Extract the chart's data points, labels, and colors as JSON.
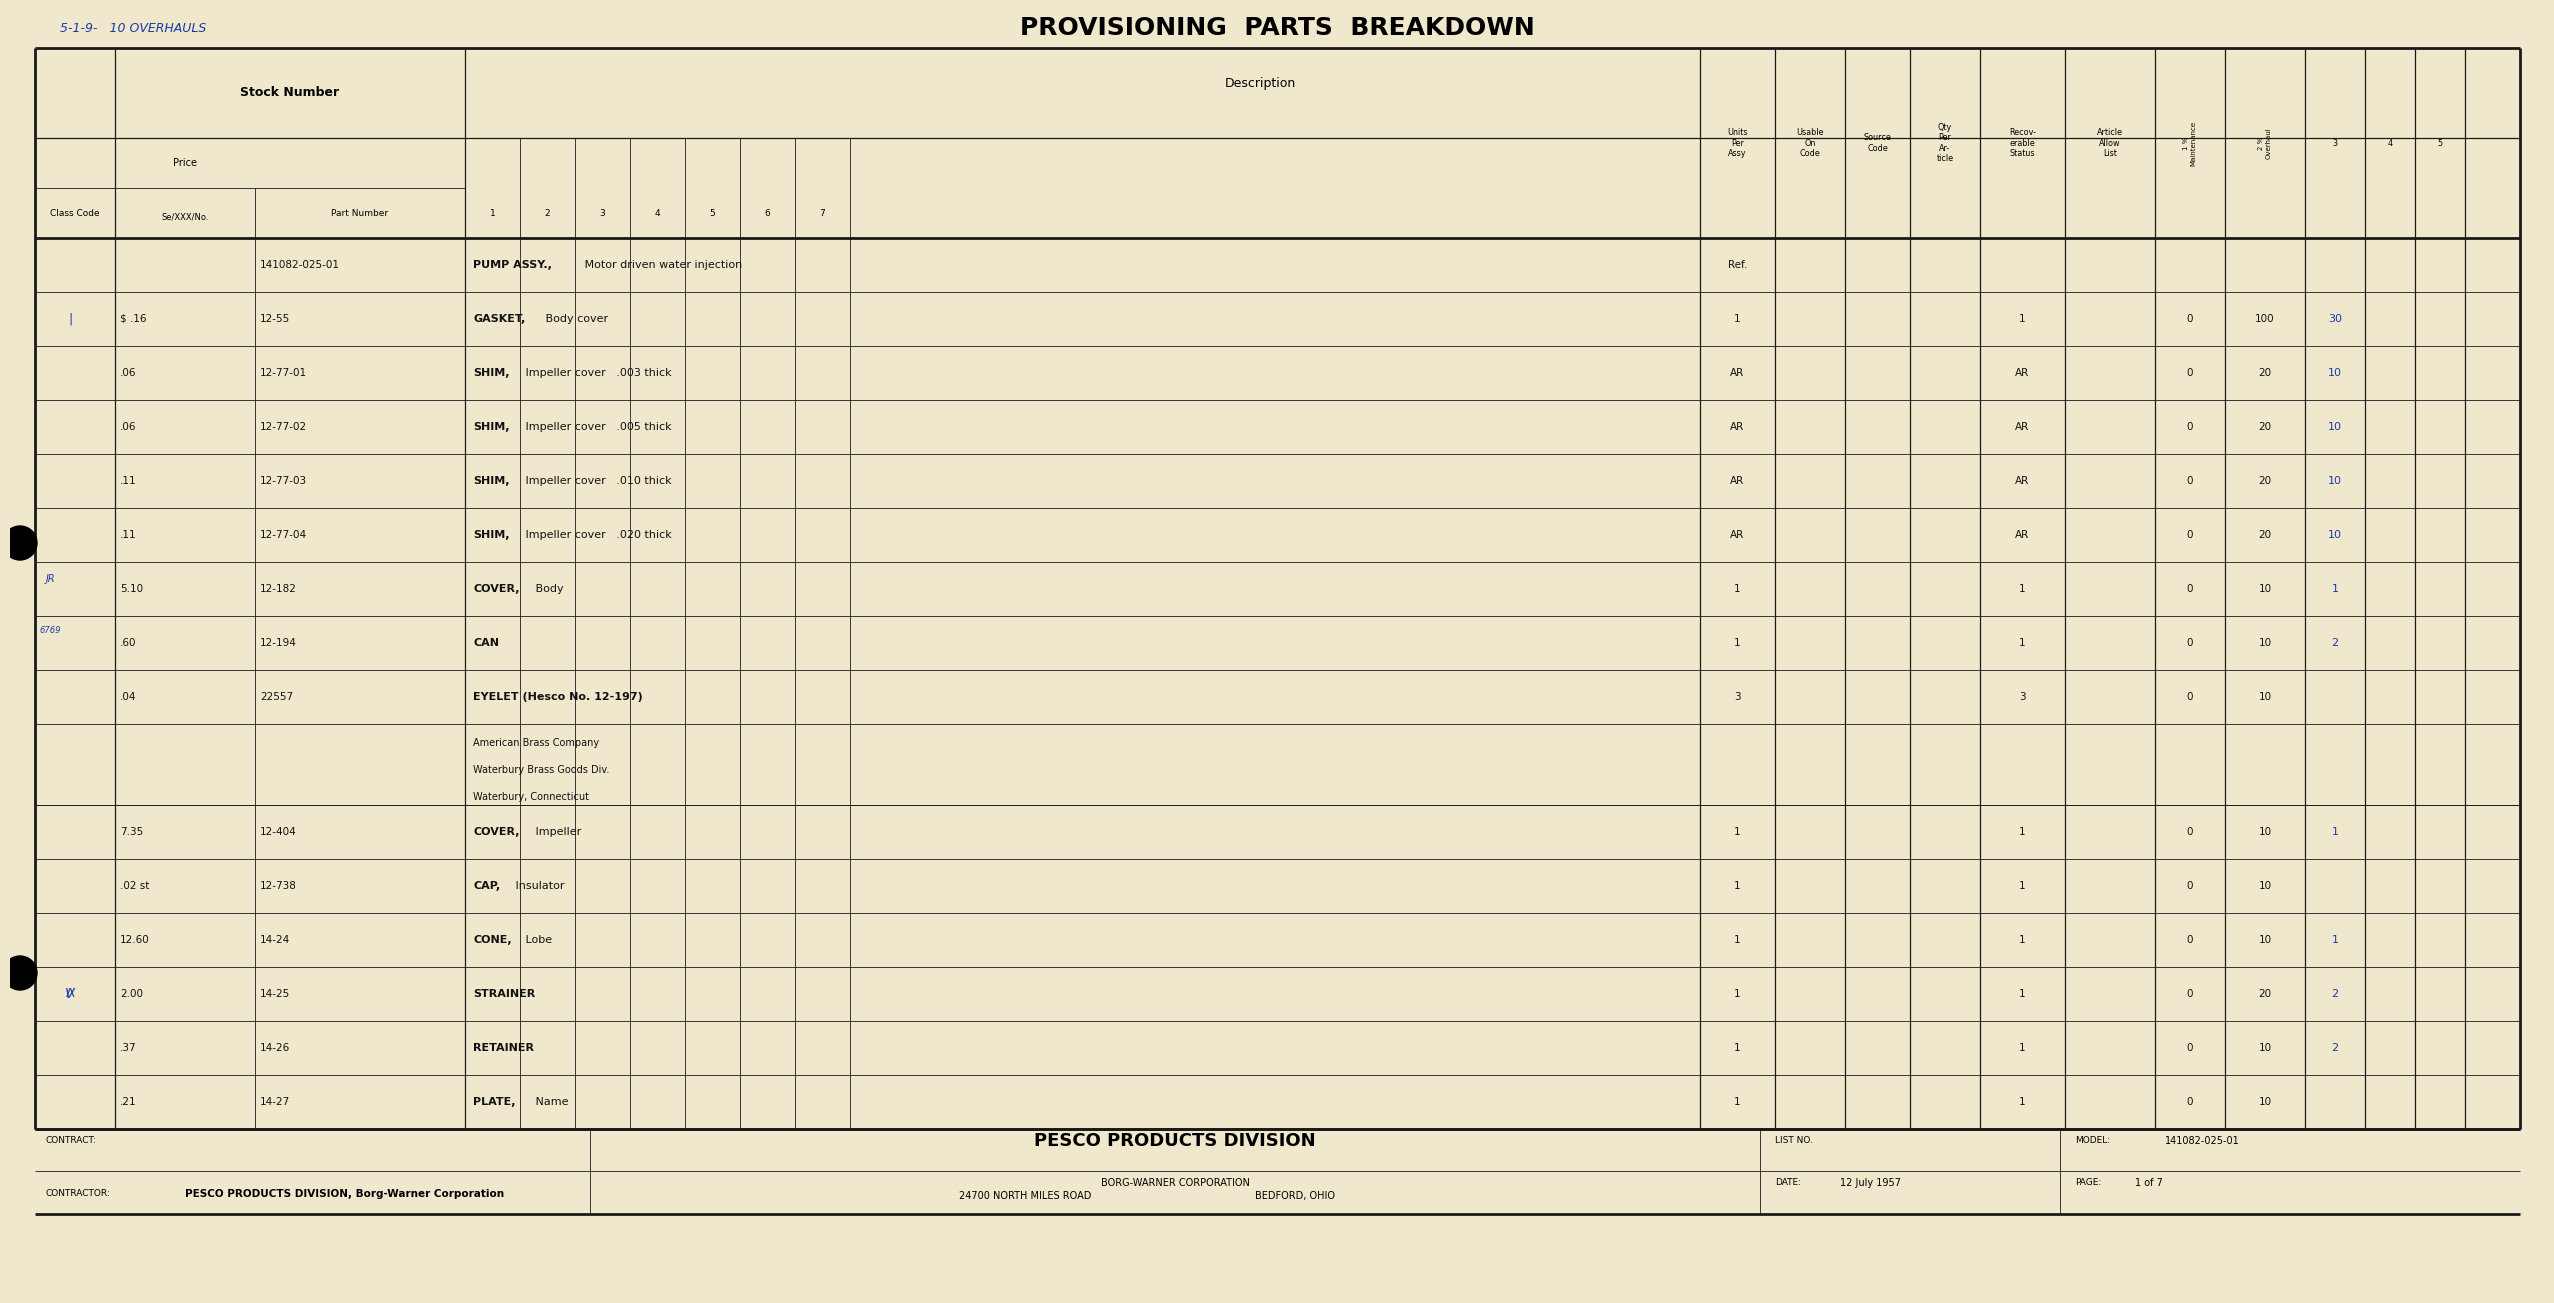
{
  "bg_color": "#f0e8cc",
  "line_color": "#1a1a1a",
  "title": "PROVISIONING  PARTS  BREAKDOWN",
  "handwritten_note": "5-1-9-   10 OVERHAULS",
  "rows": [
    {
      "price": "",
      "part": "141082-025-01",
      "desc1": "PUMP ASSY.,",
      "desc2": " Motor driven water injection",
      "units": "Ref.",
      "qty": "",
      "m1s": "",
      "m2s": "",
      "ovh": "",
      "c3": "",
      "c4": "",
      "c5": "",
      "extra_lines": []
    },
    {
      "price": "$ .16",
      "part": "12-55",
      "desc1": "GASKET,",
      "desc2": " Body cover",
      "units": "1",
      "qty": "1",
      "m1s": "0",
      "m2s": "100",
      "ovh": "30",
      "c3": "",
      "c4": "",
      "c5": "",
      "extra_lines": []
    },
    {
      "price": ".06",
      "part": "12-77-01",
      "desc1": "SHIM,",
      "desc2": " Impeller cover   .003 thick",
      "units": "AR",
      "qty": "AR",
      "m1s": "0",
      "m2s": "20",
      "ovh": "10",
      "c3": "",
      "c4": "",
      "c5": "",
      "extra_lines": []
    },
    {
      "price": ".06",
      "part": "12-77-02",
      "desc1": "SHIM,",
      "desc2": " Impeller cover   .005 thick",
      "units": "AR",
      "qty": "AR",
      "m1s": "0",
      "m2s": "20",
      "ovh": "10",
      "c3": "",
      "c4": "",
      "c5": "",
      "extra_lines": []
    },
    {
      "price": ".11",
      "part": "12-77-03",
      "desc1": "SHIM,",
      "desc2": " Impeller cover   .010 thick",
      "units": "AR",
      "qty": "AR",
      "m1s": "0",
      "m2s": "20",
      "ovh": "10",
      "c3": "",
      "c4": "",
      "c5": "",
      "extra_lines": []
    },
    {
      "price": ".11",
      "part": "12-77-04",
      "desc1": "SHIM,",
      "desc2": " Impeller cover   .020 thick",
      "units": "AR",
      "qty": "AR",
      "m1s": "0",
      "m2s": "20",
      "ovh": "10",
      "c3": "",
      "c4": "",
      "c5": "",
      "extra_lines": []
    },
    {
      "price": "5.10",
      "part": "12-182",
      "desc1": "COVER,",
      "desc2": " Body",
      "units": "1",
      "qty": "1",
      "m1s": "0",
      "m2s": "10",
      "ovh": "1",
      "c3": "",
      "c4": "",
      "c5": "",
      "extra_lines": []
    },
    {
      "price": ".60",
      "part": "12-194",
      "desc1": "CAN",
      "desc2": "",
      "units": "1",
      "qty": "1",
      "m1s": "0",
      "m2s": "10",
      "ovh": "2",
      "c3": "",
      "c4": "",
      "c5": "",
      "extra_lines": []
    },
    {
      "price": ".04",
      "part": "22557",
      "desc1": "EYELET (Hesco No. 12-197)",
      "desc2": "",
      "units": "3",
      "qty": "3",
      "m1s": "0",
      "m2s": "10",
      "ovh": "",
      "c3": "",
      "c4": "",
      "c5": "",
      "extra_lines": [
        "American Brass Company",
        "Waterbury Brass Goods Div.",
        "Waterbury, Connecticut"
      ]
    },
    {
      "price": "7.35",
      "part": "12-404",
      "desc1": "COVER,",
      "desc2": " Impeller",
      "units": "1",
      "qty": "1",
      "m1s": "0",
      "m2s": "10",
      "ovh": "1",
      "c3": "",
      "c4": "",
      "c5": "",
      "extra_lines": []
    },
    {
      "price": ".02 st",
      "part": "12-738",
      "desc1": "CAP,",
      "desc2": " Insulator",
      "units": "1",
      "qty": "1",
      "m1s": "0",
      "m2s": "10",
      "ovh": "",
      "c3": "",
      "c4": "",
      "c5": "",
      "extra_lines": []
    },
    {
      "price": "12.60",
      "part": "14-24",
      "desc1": "CONE,",
      "desc2": " Lobe",
      "units": "1",
      "qty": "1",
      "m1s": "0",
      "m2s": "10",
      "ovh": "1",
      "c3": "",
      "c4": "",
      "c5": "",
      "extra_lines": []
    },
    {
      "price": "2.00",
      "part": "14-25",
      "desc1": "STRAINER",
      "desc2": "",
      "units": "1",
      "qty": "1",
      "m1s": "0",
      "m2s": "20",
      "ovh": "2",
      "c3": "",
      "c4": "",
      "c5": "",
      "extra_lines": []
    },
    {
      "price": ".37",
      "part": "14-26",
      "desc1": "RETAINER",
      "desc2": "",
      "units": "1",
      "qty": "1",
      "m1s": "0",
      "m2s": "10",
      "ovh": "2",
      "c3": "",
      "c4": "",
      "c5": "",
      "extra_lines": []
    },
    {
      "price": ".21",
      "part": "14-27",
      "desc1": "PLATE,",
      "desc2": " Name",
      "units": "1",
      "qty": "1",
      "m1s": "0",
      "m2s": "10",
      "ovh": "",
      "c3": "",
      "c4": "",
      "c5": "",
      "extra_lines": []
    }
  ],
  "footer": {
    "contract_label": "CONTRACT:",
    "contractor_label": "CONTRACTOR:",
    "contractor_value": "PESCO PRODUCTS DIVISION, Borg-Warner Corporation",
    "company_name": "PESCO PRODUCTS DIVISION",
    "company_sub": "BORG-WARNER CORPORATION",
    "company_addr1": "24700 NORTH MILES ROAD",
    "company_addr2": "BEDFORD, OHIO",
    "list_no_label": "LIST NO.",
    "date_label": "DATE:",
    "date_value": "12 July 1957",
    "model_label": "MODEL:",
    "model_value": "141082-025-01",
    "page_label": "PAGE:",
    "page_value": "1 of 7"
  }
}
